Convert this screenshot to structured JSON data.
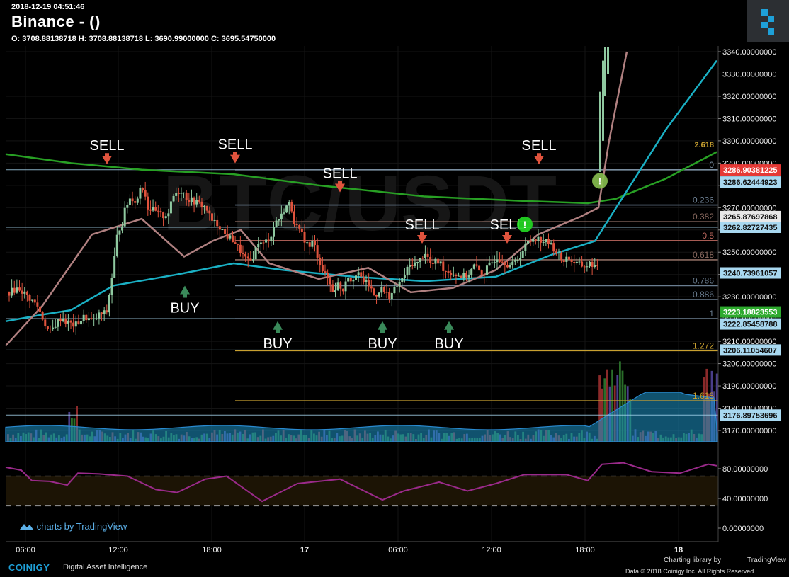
{
  "header": {
    "datetime": "2018-12-19 04:51:46",
    "title": "Binance -  ()",
    "ohlc": "O: 3708.88138718 H: 3708.88138718 L: 3690.99000000 C: 3695.54750000"
  },
  "watermark": "BTC/USDT",
  "footer": {
    "brand": "COINIGY",
    "tagline": "Digital Asset Intelligence",
    "charting_library": "Charting library by",
    "tv_name": "TradingView",
    "data_credit": "Data © 2018",
    "rights": "Coinigy Inc. All Rights Reserved.",
    "charts_by": "charts by TradingView"
  },
  "colors": {
    "background": "#000000",
    "up_candle": "#8fc9a0",
    "down_candle": "#e0533d",
    "ma_slow": "#28a024",
    "ma_mid": "#1ab0c4",
    "ma_fast": "#b08080",
    "rsi": "#9a2a8a",
    "sell_arrow": "#e0533d",
    "buy_arrow": "#3a8a5a"
  },
  "chart_data": {
    "type": "candlestick",
    "y_axis_price": {
      "ticks": [
        "3340.00000000",
        "3330.00000000",
        "3320.00000000",
        "3310.00000000",
        "3300.00000000",
        "3290.00000000",
        "3280.00000000",
        "3270.00000000",
        "3260.00000000",
        "3250.00000000",
        "3240.00000000",
        "3230.00000000",
        "3220.00000000",
        "3210.00000000",
        "3200.00000000",
        "3190.00000000",
        "3180.00000000",
        "3170.00000000"
      ],
      "range": [
        3164,
        3342
      ]
    },
    "y_axis_rsi": {
      "ticks": [
        "80.00000000",
        "40.00000000",
        "0.00000000"
      ],
      "range": [
        0,
        100
      ],
      "bands": [
        70,
        30
      ]
    },
    "x_axis": {
      "ticks": [
        "06:00",
        "12:00",
        "18:00",
        "17",
        "06:00",
        "12:00",
        "18:00",
        "18"
      ]
    },
    "price_labels": [
      {
        "value": "3286.90381225",
        "price": 3286.9,
        "color": "#e53935"
      },
      {
        "value": "3286.62444923",
        "price": 3281.5,
        "color": "#a8d8f0"
      },
      {
        "value": "3265.87697868",
        "price": 3266.0,
        "color": "#e8e8e8"
      },
      {
        "value": "3262.82727435",
        "price": 3261.2,
        "color": "#a8d8f0"
      },
      {
        "value": "3240.73961057",
        "price": 3240.7,
        "color": "#a8d8f0"
      },
      {
        "value": "3223.18823553",
        "price": 3223.2,
        "color": "#2eaa2e"
      },
      {
        "value": "3222.85458788",
        "price": 3217.8,
        "color": "#a8d8f0"
      },
      {
        "value": "3206.11054607",
        "price": 3206.1,
        "color": "#a8d8f0"
      },
      {
        "value": "3176.89753696",
        "price": 3176.9,
        "color": "#a8d8f0"
      }
    ],
    "fib_levels": [
      {
        "label": "0",
        "price": 3287.0,
        "color": "#7a8ea0"
      },
      {
        "label": "0.236",
        "price": 3271.2,
        "color": "#6a7d90"
      },
      {
        "label": "0.382",
        "price": 3263.7,
        "color": "#8a6a60"
      },
      {
        "label": "0.5",
        "price": 3255.2,
        "color": "#c06a60"
      },
      {
        "label": "0.618",
        "price": 3246.6,
        "color": "#8a6a60"
      },
      {
        "label": "0.786",
        "price": 3235.0,
        "color": "#6a7d90"
      },
      {
        "label": "0.886",
        "price": 3228.8,
        "color": "#6a7d90"
      },
      {
        "label": "1",
        "price": 3220.2,
        "color": "#6a7d90"
      },
      {
        "label": "1.272",
        "price": 3205.8,
        "color": "#c8a030"
      },
      {
        "label": "1.618",
        "price": 3183.3,
        "color": "#c8a030"
      }
    ],
    "fib_stack_label": "2.618",
    "hlines": [
      3287.0,
      3261.2,
      3240.7,
      3220.2,
      3206.1,
      3176.9
    ],
    "signals": [
      {
        "type": "SELL",
        "x": 151,
        "price": 3287.5
      },
      {
        "type": "SELL",
        "x": 332,
        "price": 3288.0
      },
      {
        "type": "SELL",
        "x": 480,
        "price": 3275.0
      },
      {
        "type": "SELL",
        "x": 596,
        "price": 3252.0
      },
      {
        "type": "SELL",
        "x": 716,
        "price": 3252.0
      },
      {
        "type": "SELL",
        "x": 761,
        "price": 3287.5
      },
      {
        "type": "BUY",
        "x": 261,
        "price": 3235.0
      },
      {
        "type": "BUY",
        "x": 392,
        "price": 3219.0
      },
      {
        "type": "BUY",
        "x": 540,
        "price": 3219.0
      },
      {
        "type": "BUY",
        "x": 634,
        "price": 3219.0
      }
    ],
    "markers": [
      {
        "label": "!",
        "x": 741,
        "price": 3262.5,
        "color": "#22dd22"
      },
      {
        "label": "!",
        "x": 847,
        "price": 3282.0,
        "color": "#88c050"
      }
    ],
    "close_path": [
      [
        0,
        3232
      ],
      [
        5,
        3234
      ],
      [
        10,
        3230
      ],
      [
        15,
        3226
      ],
      [
        18,
        3220
      ],
      [
        20,
        3216
      ],
      [
        22,
        3214
      ],
      [
        25,
        3218
      ],
      [
        28,
        3221
      ],
      [
        30,
        3219
      ],
      [
        35,
        3217
      ],
      [
        40,
        3221
      ],
      [
        45,
        3219
      ],
      [
        48,
        3222
      ],
      [
        52,
        3223
      ],
      [
        55,
        3240
      ],
      [
        58,
        3260
      ],
      [
        60,
        3262
      ],
      [
        62,
        3270
      ],
      [
        65,
        3275
      ],
      [
        68,
        3272
      ],
      [
        70,
        3280
      ],
      [
        72,
        3278
      ],
      [
        74,
        3270
      ],
      [
        78,
        3268
      ],
      [
        82,
        3266
      ],
      [
        85,
        3268
      ],
      [
        88,
        3276
      ],
      [
        92,
        3278
      ],
      [
        95,
        3274
      ],
      [
        98,
        3273
      ],
      [
        101,
        3272
      ],
      [
        105,
        3270
      ],
      [
        108,
        3264
      ],
      [
        112,
        3262
      ],
      [
        115,
        3258
      ],
      [
        120,
        3255
      ],
      [
        122,
        3252
      ],
      [
        125,
        3248
      ],
      [
        128,
        3245
      ],
      [
        130,
        3248
      ],
      [
        133,
        3255
      ],
      [
        135,
        3253
      ],
      [
        138,
        3256
      ],
      [
        140,
        3258
      ],
      [
        142,
        3264
      ],
      [
        145,
        3266
      ],
      [
        147,
        3270
      ],
      [
        150,
        3272
      ],
      [
        152,
        3264
      ],
      [
        154,
        3260
      ],
      [
        156,
        3258
      ],
      [
        160,
        3252
      ],
      [
        162,
        3255
      ],
      [
        165,
        3247
      ],
      [
        168,
        3240
      ],
      [
        170,
        3238
      ],
      [
        173,
        3232
      ],
      [
        175,
        3236
      ],
      [
        178,
        3233
      ],
      [
        180,
        3240
      ],
      [
        182,
        3238
      ],
      [
        184,
        3239
      ],
      [
        186,
        3240
      ],
      [
        188,
        3238
      ],
      [
        192,
        3235
      ],
      [
        195,
        3230
      ],
      [
        198,
        3234
      ],
      [
        200,
        3232
      ],
      [
        203,
        3230
      ],
      [
        206,
        3234
      ],
      [
        210,
        3238
      ],
      [
        212,
        3242
      ],
      [
        215,
        3245
      ],
      [
        218,
        3245
      ],
      [
        220,
        3248
      ],
      [
        222,
        3250
      ],
      [
        225,
        3244
      ],
      [
        228,
        3246
      ],
      [
        230,
        3245
      ],
      [
        232,
        3242
      ],
      [
        235,
        3241
      ],
      [
        238,
        3240
      ],
      [
        242,
        3239
      ],
      [
        245,
        3240
      ],
      [
        248,
        3244
      ],
      [
        250,
        3242
      ],
      [
        253,
        3240
      ],
      [
        255,
        3243
      ],
      [
        258,
        3246
      ],
      [
        260,
        3248
      ],
      [
        262,
        3247
      ],
      [
        265,
        3245
      ],
      [
        268,
        3244
      ],
      [
        270,
        3246
      ],
      [
        272,
        3248
      ],
      [
        276,
        3254
      ],
      [
        278,
        3255
      ],
      [
        280,
        3257
      ],
      [
        282,
        3256
      ],
      [
        285,
        3255
      ],
      [
        288,
        3254
      ],
      [
        290,
        3252
      ],
      [
        292,
        3250
      ],
      [
        295,
        3246
      ],
      [
        298,
        3248
      ],
      [
        300,
        3246
      ],
      [
        302,
        3245
      ],
      [
        305,
        3244
      ],
      [
        308,
        3244
      ],
      [
        310,
        3245
      ],
      [
        312,
        3244
      ],
      [
        314,
        3242
      ],
      [
        315,
        3241
      ]
    ],
    "volume": {
      "baseline_price": 3166.5,
      "max_scale_price": 3205.0
    }
  }
}
